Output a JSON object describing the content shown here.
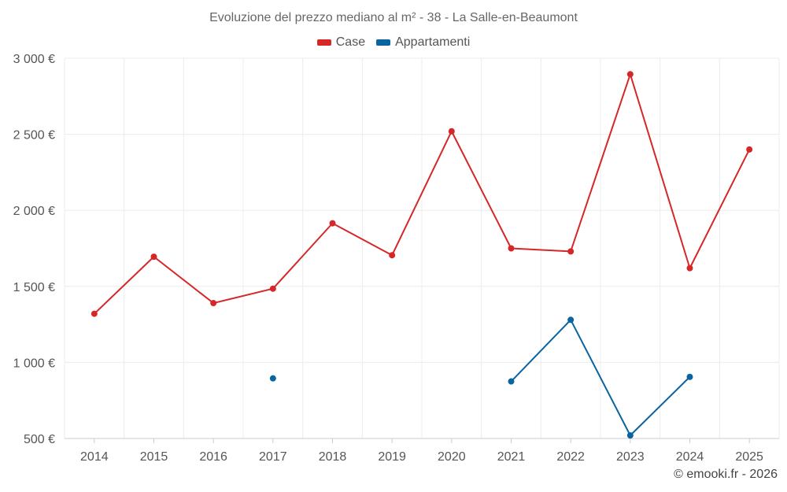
{
  "chart_data": {
    "type": "line",
    "title": "Evoluzione del prezzo mediano al m² - 38 - La Salle-en-Beaumont",
    "categories": [
      "2014",
      "2015",
      "2016",
      "2017",
      "2018",
      "2019",
      "2020",
      "2021",
      "2022",
      "2023",
      "2024",
      "2025"
    ],
    "series": [
      {
        "name": "Case",
        "color": "#d62728",
        "values": [
          1320,
          1695,
          1390,
          1485,
          1915,
          1705,
          2520,
          1750,
          1730,
          2895,
          1620,
          2400
        ]
      },
      {
        "name": "Appartamenti",
        "color": "#0a64a0",
        "values": [
          null,
          null,
          null,
          895,
          null,
          null,
          null,
          875,
          1280,
          520,
          905,
          null
        ]
      }
    ],
    "ylim": [
      500,
      3000
    ],
    "yticks": [
      500,
      1000,
      1500,
      2000,
      2500,
      3000
    ],
    "ytick_labels": [
      "500 €",
      "1 000 €",
      "1 500 €",
      "2 000 €",
      "2 500 €",
      "3 000 €"
    ],
    "grid": true,
    "legend_position": "top-center",
    "credit": "© emooki.fr - 2026"
  }
}
